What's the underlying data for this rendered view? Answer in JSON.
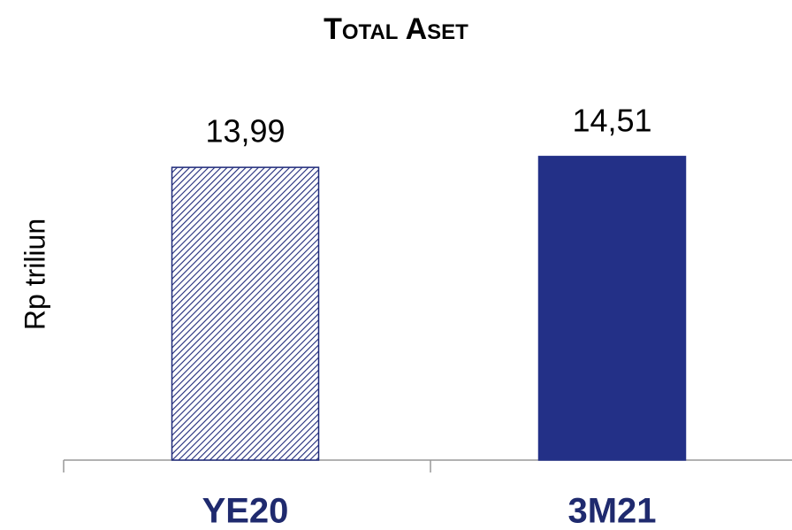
{
  "chart_data": {
    "type": "bar",
    "title": "Total Aset",
    "y_label": "Rp triliun",
    "categories": [
      "YE20",
      "3M21"
    ],
    "values": [
      13.99,
      14.51
    ],
    "value_labels": [
      "13,99",
      "14,51"
    ],
    "colors": [
      "#1f2a7a",
      "#233087"
    ],
    "hatched": [
      true,
      false
    ],
    "ylim": [
      0,
      20
    ]
  }
}
